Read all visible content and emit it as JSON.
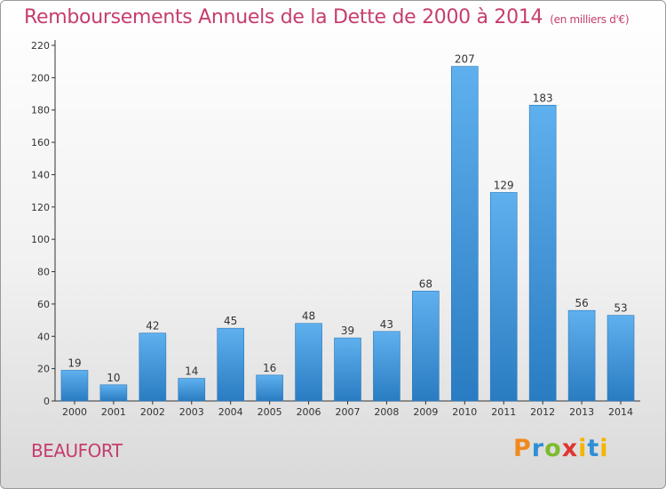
{
  "chart_data": {
    "type": "bar",
    "title": "Remboursements Annuels de la Dette de 2000 à 2014",
    "unit_note": "(en milliers d'€)",
    "categories": [
      "2000",
      "2001",
      "2002",
      "2003",
      "2004",
      "2005",
      "2006",
      "2007",
      "2008",
      "2009",
      "2010",
      "2011",
      "2012",
      "2013",
      "2014"
    ],
    "values": [
      19,
      10,
      42,
      14,
      45,
      16,
      48,
      39,
      43,
      68,
      207,
      129,
      183,
      56,
      53
    ],
    "yticks": [
      0,
      20,
      40,
      60,
      80,
      100,
      120,
      140,
      160,
      180,
      200,
      220
    ],
    "ylim": [
      0,
      220
    ],
    "xlabel": "",
    "ylabel": "",
    "grid": false,
    "bar_color": "#3f97de",
    "bar_color_dark": "#2577bd"
  },
  "place_name": "BEAUFORT",
  "logo": {
    "text": "Proxiti",
    "colors": [
      "#f08a1c",
      "#2f8fd6",
      "#7dbb2f",
      "#e0352f",
      "#f5b400",
      "#2f8fd6"
    ]
  }
}
